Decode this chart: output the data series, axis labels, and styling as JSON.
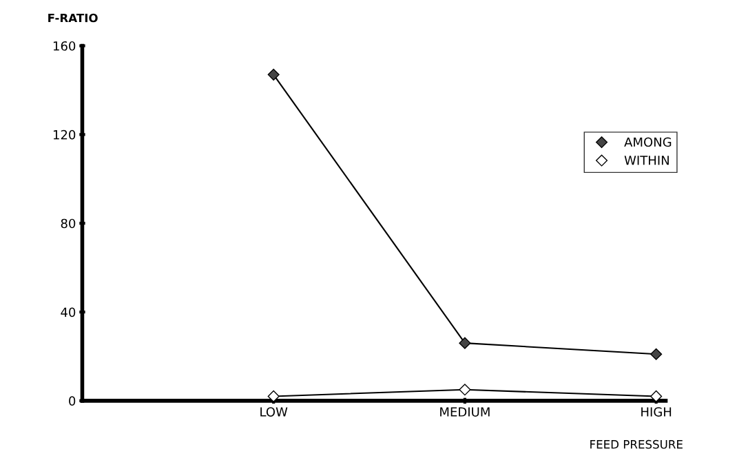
{
  "chart_data": {
    "type": "line",
    "xlabel": "FEED PRESSURE",
    "ylabel": "F-RATIO",
    "categories": [
      "LOW",
      "MEDIUM",
      "HIGH"
    ],
    "series": [
      {
        "name": "AMONG",
        "color": "#444444",
        "values": [
          147,
          26,
          21
        ]
      },
      {
        "name": "WITHIN",
        "color": "#ffffff",
        "values": [
          2,
          5,
          2
        ]
      }
    ],
    "ylim": [
      0,
      160
    ],
    "yticks": [
      0,
      40,
      80,
      120,
      160
    ],
    "grid": false,
    "legend": "right",
    "marker": "diamond",
    "line_style": "solid"
  }
}
